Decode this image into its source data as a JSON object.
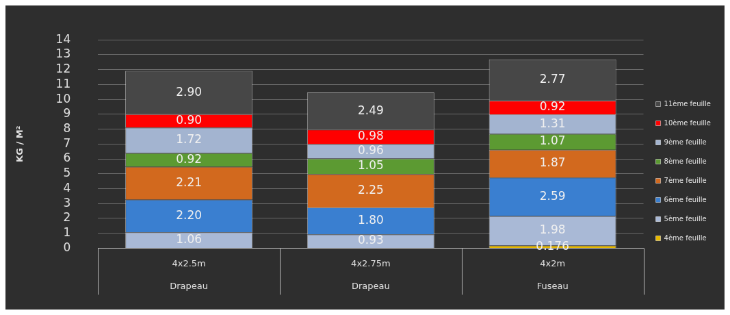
{
  "chart_data": {
    "type": "bar",
    "stacked": true,
    "ylabel": "KG / M²",
    "categories": [
      "4x2.5m\nDrapeau",
      "4x2.75m\nDrapeau",
      "4x2m\nFuseau"
    ],
    "ylim": [
      0,
      14
    ],
    "yticks": [
      0,
      1,
      2,
      3,
      4,
      5,
      6,
      7,
      8,
      9,
      10,
      11,
      12,
      13,
      14
    ],
    "grid": "y",
    "legend": "right",
    "series": [
      {
        "name": "4ème feuille",
        "color": "#e6b800",
        "values": [
          null,
          null,
          0.176
        ],
        "value_labels": [
          null,
          null,
          "0.176"
        ]
      },
      {
        "name": "5ème feuille",
        "color": "#a9b9d6",
        "values": [
          1.06,
          0.93,
          1.98
        ],
        "value_labels": [
          "1.06",
          "0.93",
          "1.98"
        ]
      },
      {
        "name": "6ème feuille",
        "color": "#3a7fd0",
        "values": [
          2.2,
          1.8,
          2.59
        ],
        "value_labels": [
          "2.20",
          "1.80",
          "2.59"
        ]
      },
      {
        "name": "7ème feuille",
        "color": "#d2691e",
        "values": [
          2.21,
          2.25,
          1.87
        ],
        "value_labels": [
          "2.21",
          "2.25",
          "1.87"
        ]
      },
      {
        "name": "8ème feuille",
        "color": "#5c9a32",
        "values": [
          0.92,
          1.05,
          1.07
        ],
        "value_labels": [
          "0.92",
          "1.05",
          "1.07"
        ]
      },
      {
        "name": "9ème feuille",
        "color": "#a3b4d0",
        "values": [
          1.72,
          0.96,
          1.31
        ],
        "value_labels": [
          "1.72",
          "0.96",
          "1.31"
        ]
      },
      {
        "name": "10ème feuille",
        "color": "#ff0000",
        "values": [
          0.9,
          0.98,
          0.92
        ],
        "value_labels": [
          "0.90",
          "0.98",
          "0.92"
        ]
      },
      {
        "name": "11ème feuille",
        "color": "#474747",
        "values": [
          2.9,
          2.49,
          2.77
        ],
        "value_labels": [
          "2.90",
          "2.49",
          "2.77"
        ]
      }
    ]
  }
}
